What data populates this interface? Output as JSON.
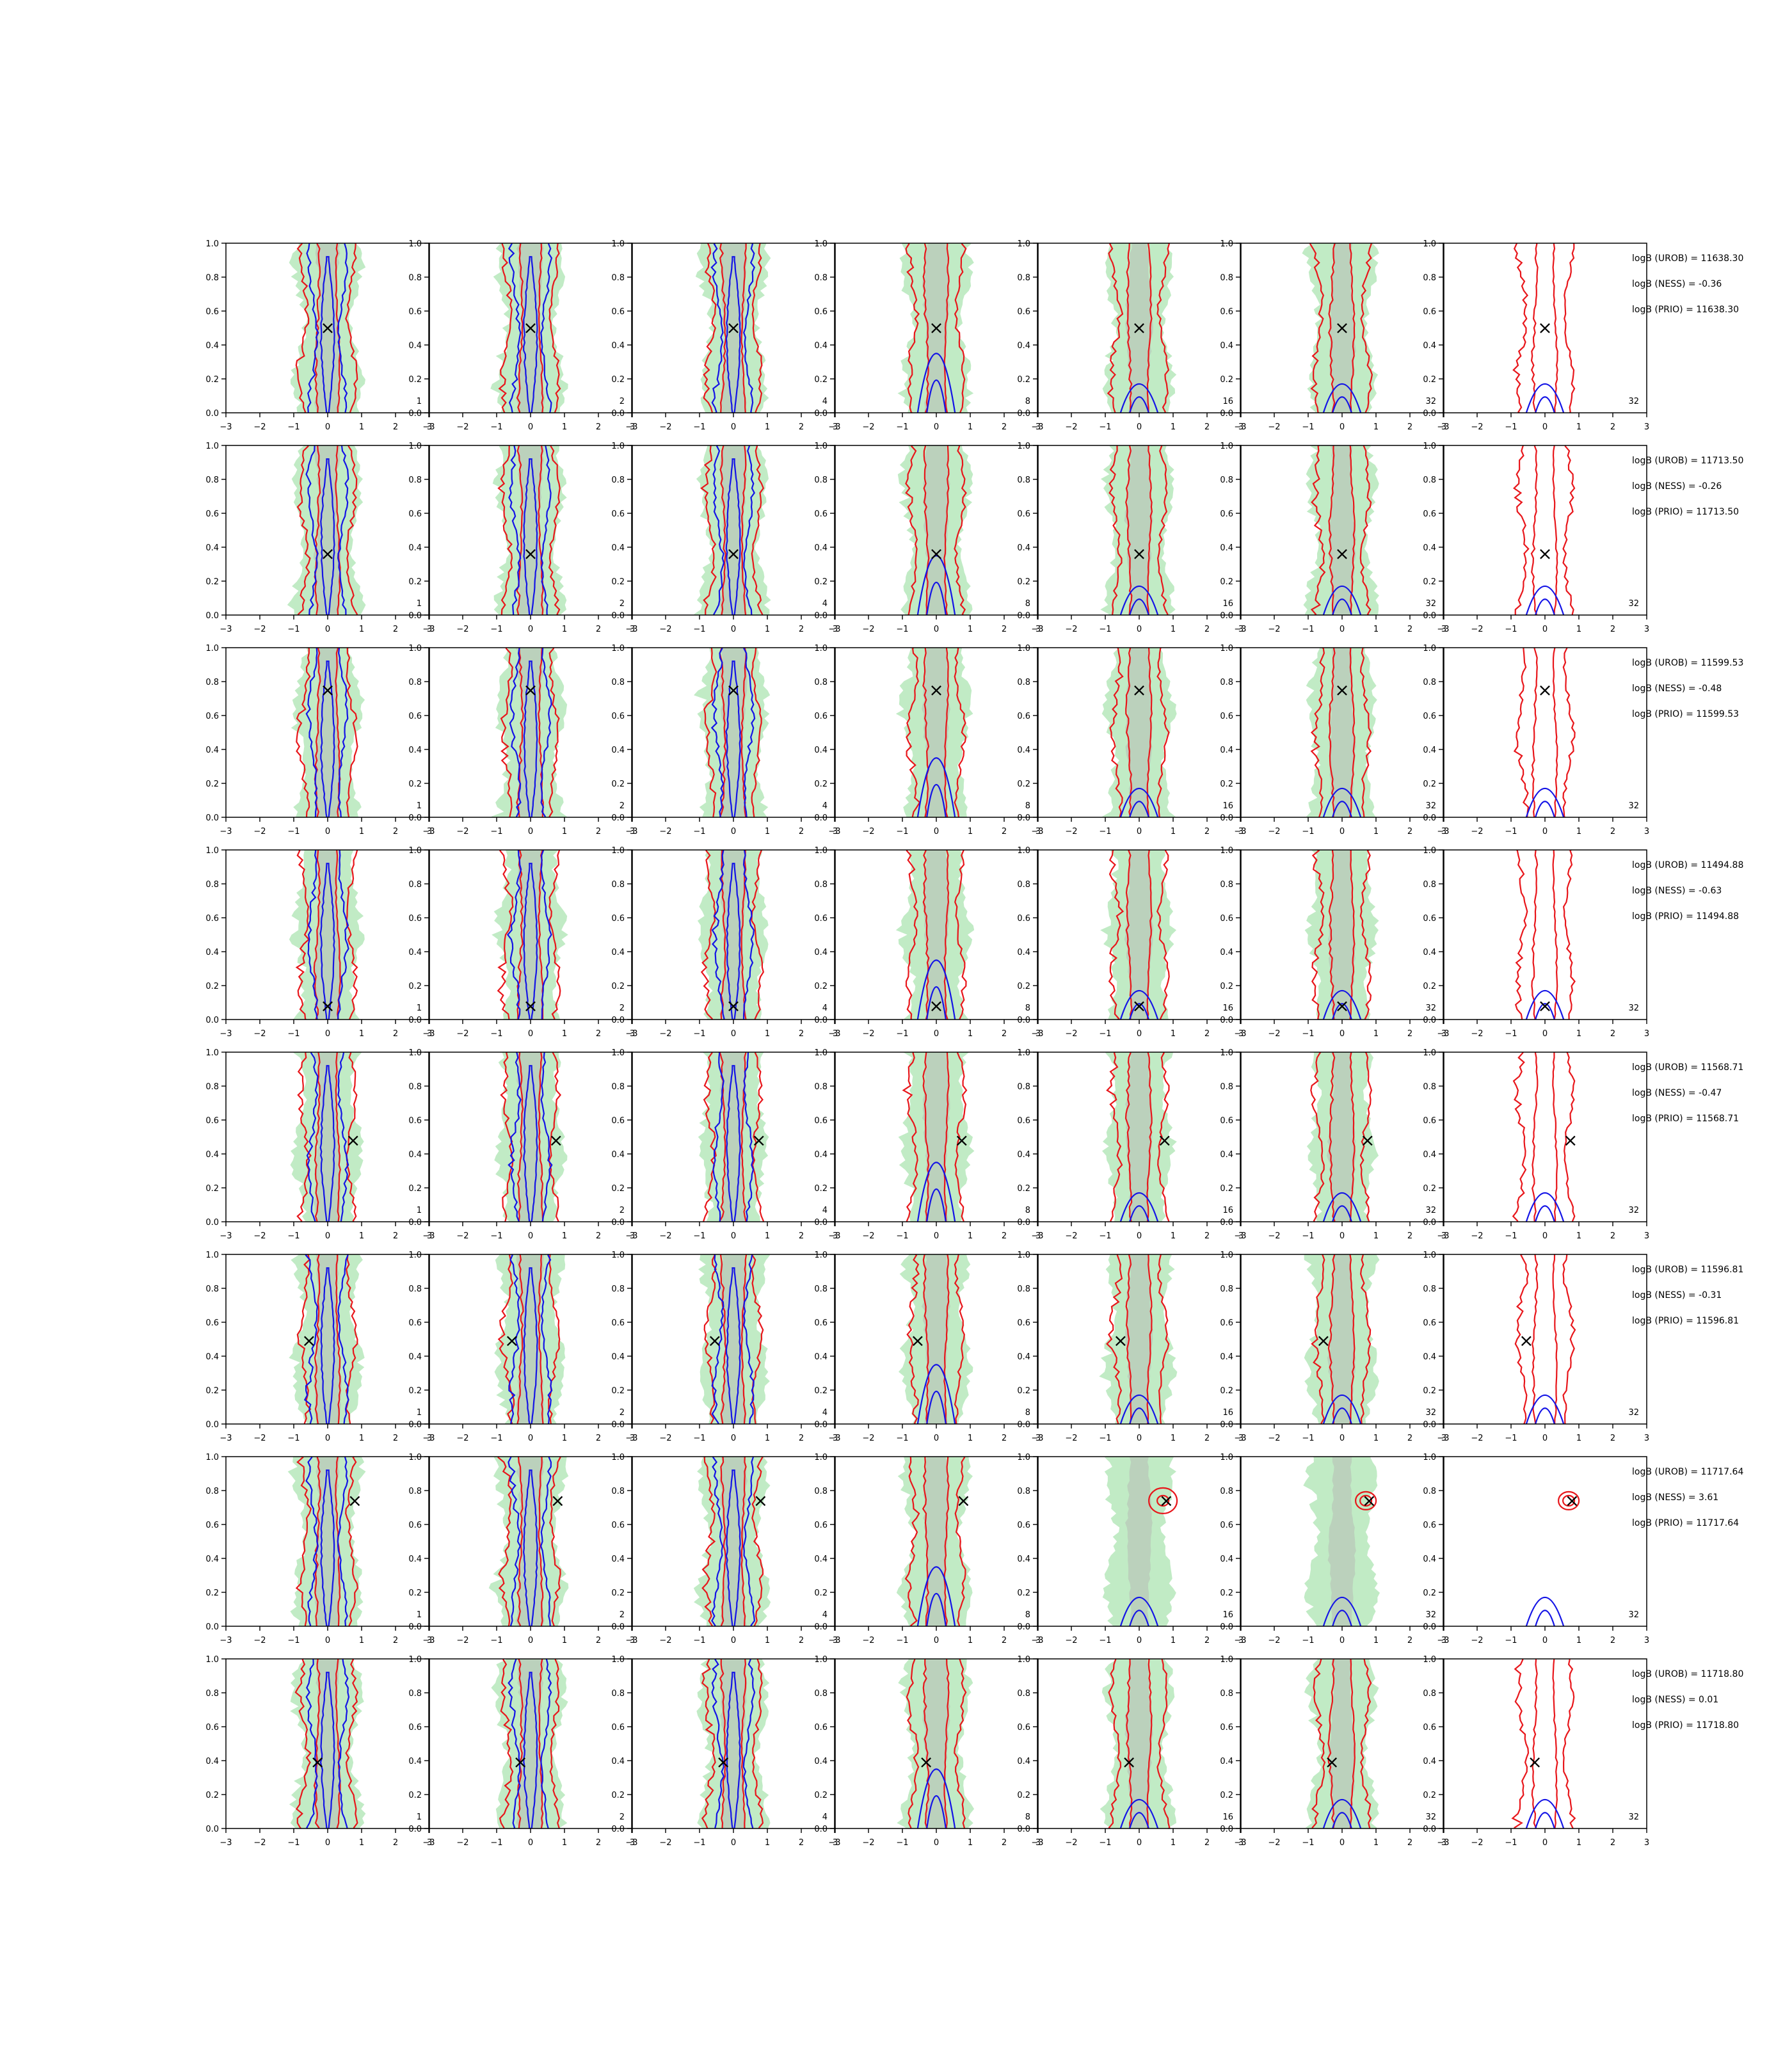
{
  "chart_data": {
    "type": "contour",
    "layout": "grid of 8 rows x 7 columns of contour panels",
    "xlim": [
      -3,
      3
    ],
    "ylim": [
      0.0,
      1.0
    ],
    "x_ticks": [
      "−3",
      "−2",
      "−1",
      "0",
      "1",
      "2",
      "3"
    ],
    "y_ticks": [
      "0.0",
      "0.2",
      "0.4",
      "0.6",
      "0.8",
      "1.0"
    ],
    "column_labels": [
      "1",
      "2",
      "4",
      "8",
      "16",
      "32",
      "32"
    ],
    "colors": {
      "filled_region": "#9fe0a6",
      "inner_core": "#b8c8b8",
      "red_contour": "#e8161b",
      "blue_contour": "#1414e6",
      "marker": "#000000"
    },
    "marker": "×",
    "rows": [
      {
        "marker": [
          0.0,
          0.5
        ],
        "annotations": [
          "logB (UROB) = 11638.30",
          "logB (NESS) = -0.36",
          "logB (PRIO) = 11638.30"
        ]
      },
      {
        "marker": [
          0.0,
          0.36
        ],
        "annotations": [
          "logB (UROB) = 11713.50",
          "logB (NESS) = -0.26",
          "logB (PRIO) = 11713.50"
        ]
      },
      {
        "marker": [
          0.0,
          0.75
        ],
        "annotations": [
          "logB (UROB) = 11599.53",
          "logB (NESS) = -0.48",
          "logB (PRIO) = 11599.53"
        ]
      },
      {
        "marker": [
          0.0,
          0.08
        ],
        "annotations": [
          "logB (UROB) = 11494.88",
          "logB (NESS) = -0.63",
          "logB (PRIO) = 11494.88"
        ]
      },
      {
        "marker": [
          0.75,
          0.48
        ],
        "annotations": [
          "logB (UROB) = 11568.71",
          "logB (NESS) = -0.47",
          "logB (PRIO) = 11568.71"
        ]
      },
      {
        "marker": [
          -0.55,
          0.49
        ],
        "annotations": [
          "logB (UROB) = 11596.81",
          "logB (NESS) = -0.31",
          "logB (PRIO) = 11596.81"
        ]
      },
      {
        "marker": [
          0.8,
          0.74
        ],
        "annotations": [
          "logB (UROB) = 11717.64",
          "logB (NESS) = 3.61",
          "logB (PRIO) = 11717.64"
        ]
      },
      {
        "marker": [
          -0.3,
          0.39
        ],
        "annotations": [
          "logB (UROB) = 11718.80",
          "logB (NESS) = 0.01",
          "logB (PRIO) = 11718.80"
        ]
      }
    ]
  }
}
